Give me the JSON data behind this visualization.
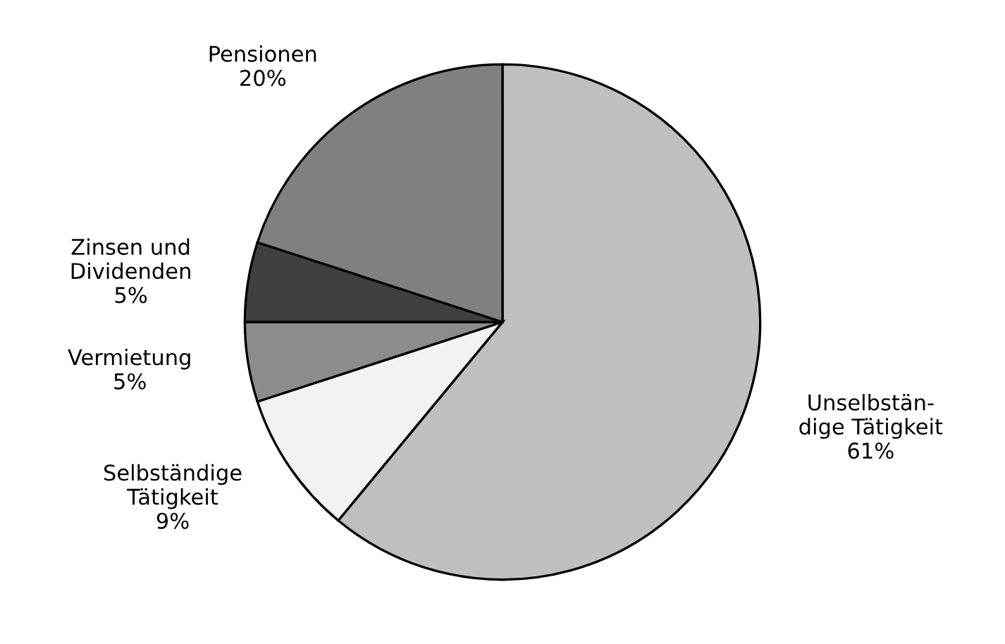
{
  "chart_data": {
    "type": "pie",
    "categories": [
      "Unselbstän-\ndige Tätigkeit",
      "Selbständige\nTätigkeit",
      "Vermietung",
      "Zinsen und\nDividenden",
      "Pensionen"
    ],
    "values": [
      61,
      9,
      5,
      5,
      20
    ],
    "colors": [
      "#bfbfbf",
      "#f2f2f2",
      "#8c8c8c",
      "#404040",
      "#808080"
    ],
    "value_labels": [
      "61%",
      "9%",
      "5%",
      "5%",
      "20%"
    ],
    "legend": false
  }
}
